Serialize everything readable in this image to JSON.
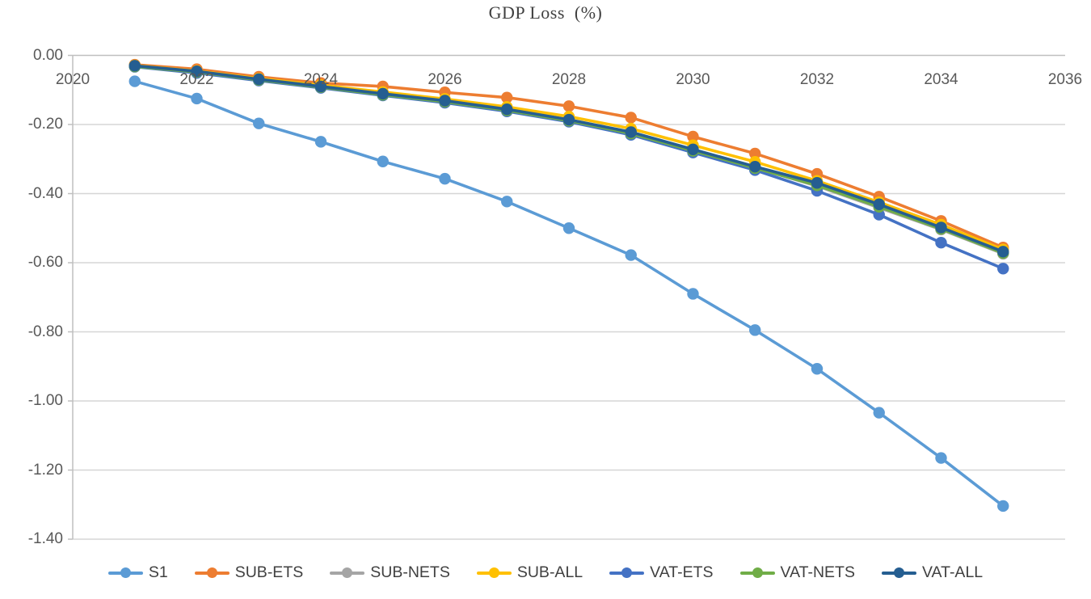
{
  "page": {
    "background": "#ffffff"
  },
  "chart_data": {
    "type": "line",
    "title": "GDP Loss  (%)",
    "title_color": "#404040",
    "axis_label_color": "#595959",
    "legend_text_color": "#404040",
    "gridline_color": "#D6D6D6",
    "axis_line_color": "#BFBFBF",
    "grid": "horizontal-only",
    "legend_position": "bottom",
    "xlim": [
      2020,
      2036
    ],
    "ylim": [
      -1.4,
      0
    ],
    "x": [
      2021,
      2022,
      2023,
      2024,
      2025,
      2026,
      2027,
      2028,
      2029,
      2030,
      2031,
      2032,
      2033,
      2034,
      2035
    ],
    "xticks": [
      {
        "label": "2020",
        "value": 2020
      },
      {
        "label": "2022",
        "value": 2022
      },
      {
        "label": "2024",
        "value": 2024
      },
      {
        "label": "2026",
        "value": 2026
      },
      {
        "label": "2028",
        "value": 2028
      },
      {
        "label": "2030",
        "value": 2030
      },
      {
        "label": "2032",
        "value": 2032
      },
      {
        "label": "2034",
        "value": 2034
      },
      {
        "label": "2036",
        "value": 2036
      }
    ],
    "yticks": [
      {
        "label": "0.00",
        "value": 0
      },
      {
        "label": "-0.20",
        "value": -0.2
      },
      {
        "label": "-0.40",
        "value": -0.4
      },
      {
        "label": "-0.60",
        "value": -0.6
      },
      {
        "label": "-0.80",
        "value": -0.8
      },
      {
        "label": "-1.00",
        "value": -1.0
      },
      {
        "label": "-1.20",
        "value": -1.2
      },
      {
        "label": "-1.40",
        "value": -1.4
      }
    ],
    "series": [
      {
        "name": "S1",
        "color": "#5B9BD5",
        "values": [
          -0.075,
          -0.125,
          -0.197,
          -0.25,
          -0.307,
          -0.357,
          -0.423,
          -0.5,
          -0.578,
          -0.69,
          -0.795,
          -0.907,
          -1.034,
          -1.165,
          -1.304
        ]
      },
      {
        "name": "SUB-ETS",
        "color": "#ED7D31",
        "values": [
          -0.027,
          -0.04,
          -0.062,
          -0.08,
          -0.09,
          -0.107,
          -0.122,
          -0.147,
          -0.18,
          -0.235,
          -0.284,
          -0.343,
          -0.409,
          -0.479,
          -0.556
        ]
      },
      {
        "name": "SUB-NETS",
        "color": "#A5A5A5",
        "values": [
          -0.032,
          -0.049,
          -0.072,
          -0.092,
          -0.114,
          -0.134,
          -0.159,
          -0.189,
          -0.225,
          -0.275,
          -0.325,
          -0.378,
          -0.441,
          -0.504,
          -0.574
        ]
      },
      {
        "name": "SUB-ALL",
        "color": "#FFC000",
        "values": [
          -0.029,
          -0.045,
          -0.067,
          -0.086,
          -0.106,
          -0.126,
          -0.149,
          -0.177,
          -0.212,
          -0.26,
          -0.308,
          -0.363,
          -0.425,
          -0.49,
          -0.562
        ]
      },
      {
        "name": "VAT-ETS",
        "color": "#4472C4",
        "values": [
          -0.033,
          -0.051,
          -0.073,
          -0.094,
          -0.116,
          -0.137,
          -0.162,
          -0.192,
          -0.23,
          -0.281,
          -0.332,
          -0.392,
          -0.461,
          -0.542,
          -0.617
        ]
      },
      {
        "name": "VAT-NETS",
        "color": "#70AD47",
        "values": [
          -0.032,
          -0.048,
          -0.071,
          -0.092,
          -0.114,
          -0.134,
          -0.159,
          -0.189,
          -0.226,
          -0.276,
          -0.326,
          -0.376,
          -0.438,
          -0.502,
          -0.572
        ]
      },
      {
        "name": "VAT-ALL",
        "color": "#255E91",
        "values": [
          -0.03,
          -0.046,
          -0.069,
          -0.09,
          -0.111,
          -0.131,
          -0.156,
          -0.186,
          -0.222,
          -0.272,
          -0.322,
          -0.369,
          -0.431,
          -0.498,
          -0.568
        ]
      }
    ]
  }
}
